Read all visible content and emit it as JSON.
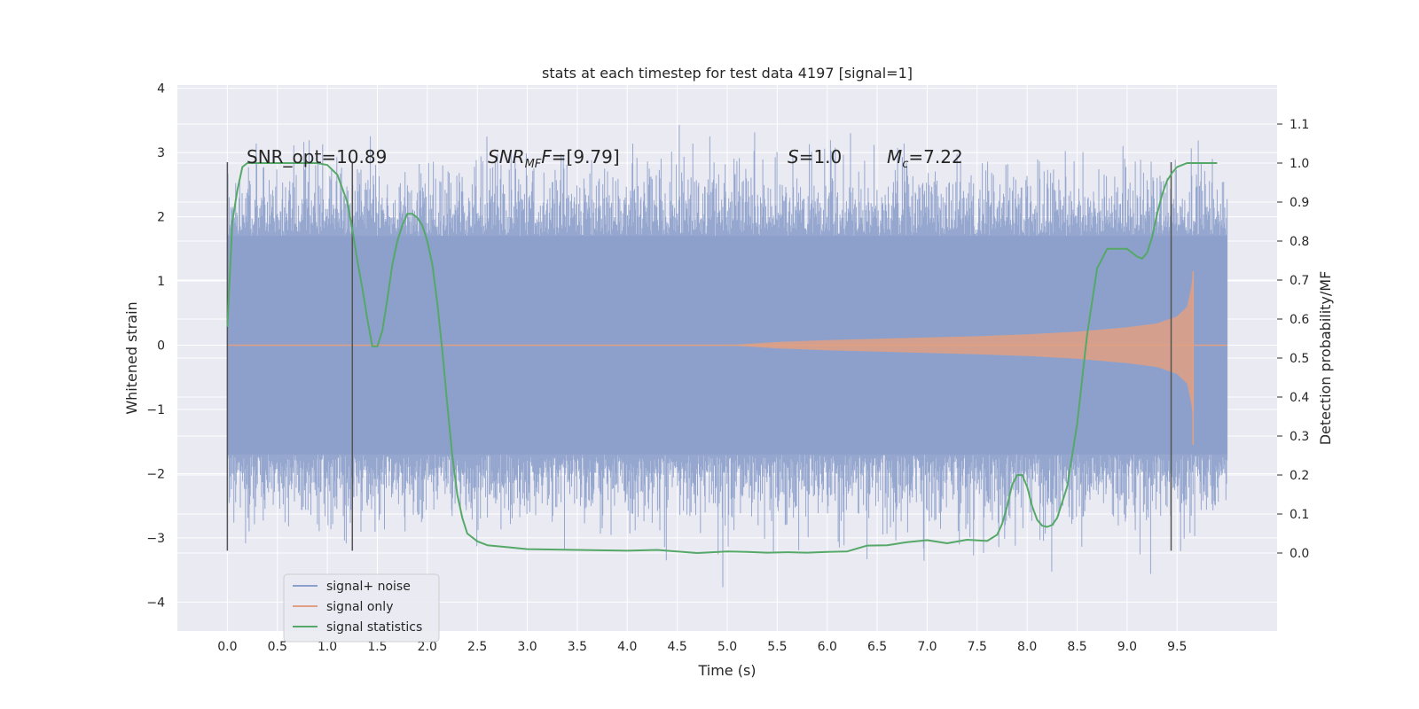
{
  "colors": {
    "background": "#eaeaf2",
    "grid": "#ffffff",
    "noise": "#8da0cb",
    "signal": "#e1a083",
    "statistics": "#55a868",
    "marker": "#555555"
  },
  "chart_data": {
    "type": "line",
    "title": "stats at each timestep for test data 4197 [signal=1]",
    "xlabel": "Time (s)",
    "ylabel_left": "Whitened strain",
    "ylabel_right": "Detection probability/MF",
    "xlim": [
      -0.5,
      10.5
    ],
    "ylim_left": [
      -4.45,
      4.05
    ],
    "ylim_right": [
      -0.2,
      1.2
    ],
    "x_ticks": [
      "0.0",
      "0.5",
      "1.0",
      "1.5",
      "2.0",
      "2.5",
      "3.0",
      "3.5",
      "4.0",
      "4.5",
      "5.0",
      "5.5",
      "6.0",
      "6.5",
      "7.0",
      "7.5",
      "8.0",
      "8.5",
      "9.0",
      "9.5"
    ],
    "x_tick_values": [
      0,
      0.5,
      1,
      1.5,
      2,
      2.5,
      3,
      3.5,
      4,
      4.5,
      5,
      5.5,
      6,
      6.5,
      7,
      7.5,
      8,
      8.5,
      9,
      9.5
    ],
    "y_left_ticks": [
      "4",
      "3",
      "2",
      "1",
      "0",
      "−1",
      "−2",
      "−3",
      "−4"
    ],
    "y_left_tick_values": [
      4,
      3,
      2,
      1,
      0,
      -1,
      -2,
      -3,
      -4
    ],
    "y_right_ticks": [
      "1.1",
      "1.0",
      "0.9",
      "0.8",
      "0.7",
      "0.6",
      "0.5",
      "0.4",
      "0.3",
      "0.2",
      "0.1",
      "0.0"
    ],
    "y_right_tick_values": [
      1.1,
      1.0,
      0.9,
      0.8,
      0.7,
      0.6,
      0.5,
      0.4,
      0.3,
      0.2,
      0.1,
      0.0
    ],
    "grid": true,
    "legend_position": "lower-left",
    "annotations": {
      "snr_opt": "SNR_opt=10.89",
      "snr_mf_base": "SNR",
      "snr_mf_sub": "MF",
      "snr_mf_rest": "=[9.79]",
      "s_var": "S",
      "s_rest": "=1.0",
      "mc_var": "M",
      "mc_sub": "c",
      "mc_rest": "=7.22"
    },
    "vertical_markers": [
      {
        "x": 0.0,
        "y_range": [
          -3.2,
          2.85
        ]
      },
      {
        "x": 1.25,
        "y_range": [
          -3.2,
          2.85
        ]
      },
      {
        "x": 9.44,
        "y_range": [
          -3.2,
          2.85
        ]
      }
    ],
    "series": [
      {
        "name": "signal+ noise",
        "axis": "left",
        "x_range": [
          0.0,
          10.0
        ],
        "typical_range": [
          -1.7,
          1.7
        ],
        "peak_range": [
          -4.05,
          3.65
        ]
      },
      {
        "name": "signal only",
        "axis": "left",
        "envelope_x": [
          0,
          5.0,
          5.5,
          6.0,
          6.5,
          7.0,
          7.5,
          8.0,
          8.5,
          9.0,
          9.3,
          9.5,
          9.6,
          9.64,
          9.66
        ],
        "envelope_amp": [
          0.0,
          0.0,
          0.05,
          0.08,
          0.1,
          0.12,
          0.14,
          0.17,
          0.21,
          0.28,
          0.34,
          0.45,
          0.6,
          0.9,
          1.15
        ],
        "x_range": [
          0.0,
          10.0
        ]
      },
      {
        "name": "signal statistics",
        "axis": "right",
        "x": [
          0.0,
          0.05,
          0.1,
          0.15,
          0.2,
          0.3,
          0.5,
          0.7,
          0.9,
          1.0,
          1.1,
          1.2,
          1.25,
          1.3,
          1.35,
          1.4,
          1.45,
          1.5,
          1.55,
          1.6,
          1.65,
          1.7,
          1.75,
          1.8,
          1.85,
          1.9,
          1.95,
          2.0,
          2.05,
          2.1,
          2.15,
          2.2,
          2.25,
          2.3,
          2.35,
          2.4,
          2.5,
          2.6,
          2.8,
          3.0,
          3.5,
          4.0,
          4.3,
          4.7,
          5.0,
          5.2,
          5.4,
          5.6,
          5.8,
          6.0,
          6.2,
          6.4,
          6.6,
          6.8,
          7.0,
          7.2,
          7.4,
          7.6,
          7.7,
          7.75,
          7.8,
          7.85,
          7.9,
          7.95,
          8.0,
          8.05,
          8.1,
          8.15,
          8.2,
          8.25,
          8.3,
          8.4,
          8.5,
          8.6,
          8.7,
          8.8,
          8.9,
          9.0,
          9.1,
          9.15,
          9.2,
          9.25,
          9.3,
          9.35,
          9.4,
          9.45,
          9.5,
          9.55,
          9.6,
          9.7,
          9.9
        ],
        "y": [
          0.58,
          0.85,
          0.93,
          0.99,
          1.0,
          1.0,
          1.0,
          1.0,
          1.0,
          0.995,
          0.97,
          0.9,
          0.83,
          0.75,
          0.68,
          0.6,
          0.53,
          0.53,
          0.57,
          0.65,
          0.74,
          0.8,
          0.84,
          0.87,
          0.87,
          0.86,
          0.84,
          0.8,
          0.74,
          0.64,
          0.52,
          0.38,
          0.25,
          0.15,
          0.09,
          0.05,
          0.03,
          0.02,
          0.015,
          0.01,
          0.008,
          0.006,
          0.008,
          0.0,
          0.004,
          0.003,
          0.001,
          0.002,
          0.001,
          0.003,
          0.004,
          0.019,
          0.02,
          0.028,
          0.033,
          0.025,
          0.034,
          0.031,
          0.047,
          0.075,
          0.12,
          0.175,
          0.2,
          0.2,
          0.17,
          0.12,
          0.085,
          0.07,
          0.067,
          0.072,
          0.09,
          0.17,
          0.33,
          0.56,
          0.73,
          0.78,
          0.78,
          0.78,
          0.76,
          0.755,
          0.77,
          0.81,
          0.87,
          0.92,
          0.955,
          0.975,
          0.99,
          0.995,
          1.0,
          1.0,
          1.0
        ]
      }
    ]
  }
}
